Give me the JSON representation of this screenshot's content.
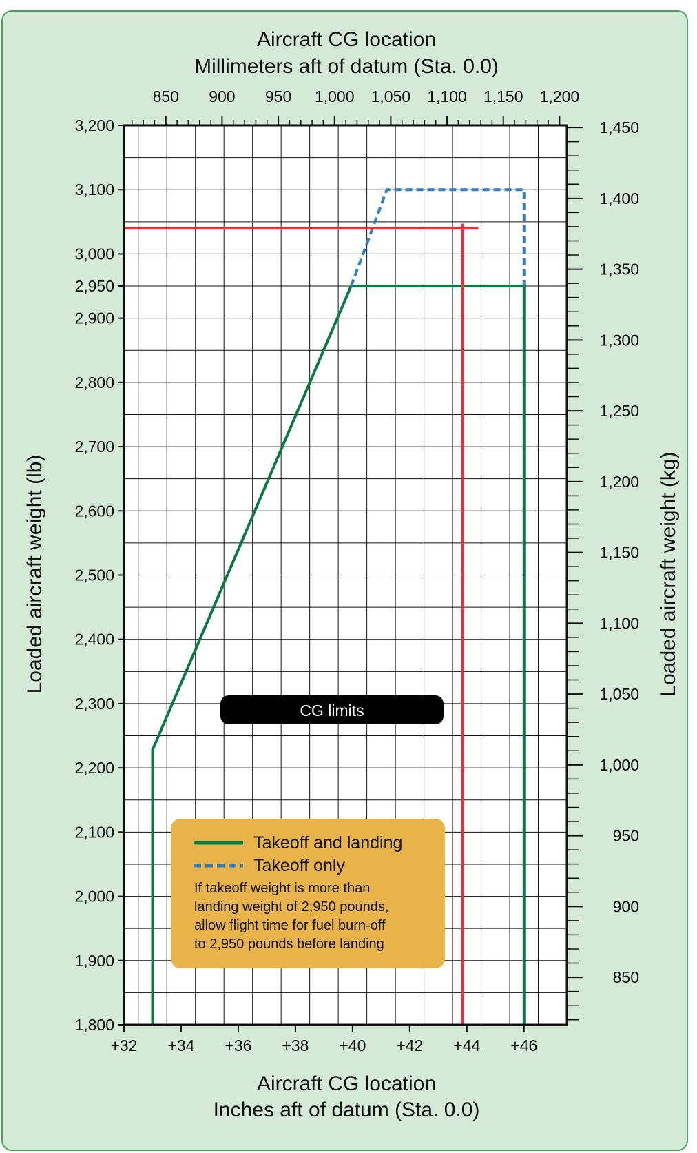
{
  "chart_data": {
    "type": "line",
    "title_top_line1": "Aircraft CG location",
    "title_top_line2": "Millimeters aft of datum (Sta. 0.0)",
    "xlabel_line1": "Aircraft CG location",
    "xlabel_line2": "Inches aft of datum (Sta. 0.0)",
    "ylabel_left": "Loaded aircraft weight (lb)",
    "ylabel_right": "Loaded aircraft weight (kg)",
    "xlim": [
      32,
      47.5
    ],
    "ylim": [
      1800,
      3200
    ],
    "x_ticks": [
      32,
      34,
      36,
      38,
      40,
      42,
      44,
      46
    ],
    "x_tick_labels": [
      "+32",
      "+34",
      "+36",
      "+38",
      "+40",
      "+42",
      "+44",
      "+46"
    ],
    "y_ticks": [
      1800,
      1900,
      2000,
      2100,
      2200,
      2300,
      2400,
      2500,
      2600,
      2700,
      2800,
      2900,
      2950,
      3000,
      3100,
      3200
    ],
    "y_tick_labels": [
      "1,800",
      "1,900",
      "2,000",
      "2,100",
      "2,200",
      "2,300",
      "2,400",
      "2,500",
      "2,600",
      "2,700",
      "2,800",
      "2,900",
      "2,950",
      "3,000",
      "3,100",
      "3,200"
    ],
    "mm_ticks": [
      850,
      900,
      950,
      1000,
      1050,
      1100,
      1150,
      1200
    ],
    "mm_tick_labels": [
      "850",
      "900",
      "950",
      "1,000",
      "1,050",
      "1,100",
      "1,150",
      "1,200"
    ],
    "kg_ticks": [
      850,
      900,
      950,
      1000,
      1050,
      1100,
      1150,
      1200,
      1250,
      1300,
      1350,
      1400,
      1450
    ],
    "kg_tick_labels": [
      "850",
      "900",
      "950",
      "1,000",
      "1,050",
      "1,100",
      "1,150",
      "1,200",
      "1,250",
      "1,300",
      "1,350",
      "1,400",
      "1,450"
    ],
    "series": [
      {
        "name": "Takeoff and landing",
        "style": "solid",
        "color": "#0b7a3e",
        "points": [
          [
            33.0,
            1800
          ],
          [
            33.0,
            2228
          ],
          [
            39.95,
            2950
          ],
          [
            46.0,
            2950
          ],
          [
            46.0,
            1800
          ]
        ]
      },
      {
        "name": "Takeoff only",
        "style": "dashed",
        "color": "#2f7fc1",
        "points": [
          [
            39.95,
            2950
          ],
          [
            41.2,
            3100
          ],
          [
            46.0,
            3100
          ],
          [
            46.0,
            2950
          ]
        ]
      },
      {
        "style": "solid",
        "color": "#e8303a",
        "points": [
          [
            32.0,
            3040
          ],
          [
            44.4,
            3040
          ]
        ]
      },
      {
        "style": "solid",
        "color": "#e8303a",
        "points": [
          [
            43.85,
            3047
          ],
          [
            43.85,
            1800
          ]
        ]
      }
    ],
    "annotation_label": "CG limits",
    "legend_note": [
      "If takeoff weight is more than",
      "landing weight of 2,950 pounds,",
      "allow flight time for fuel burn-off",
      "to 2,950 pounds before landing"
    ],
    "colors": {
      "background": "#d5ead6",
      "border": "#4aa35a",
      "legend_box": "#e8b44a",
      "label_box": "#000000"
    }
  }
}
